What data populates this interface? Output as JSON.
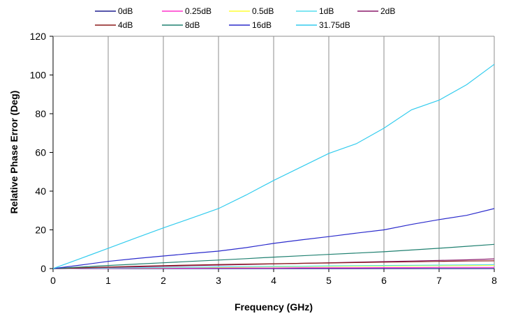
{
  "chart_data": {
    "type": "line",
    "title": "",
    "xlabel": "Frequency (GHz)",
    "ylabel": "Relative Phase Error (Deg)",
    "xlim": [
      0,
      8
    ],
    "ylim": [
      0,
      120
    ],
    "x_ticks": [
      "0",
      "1",
      "2",
      "3",
      "4",
      "5",
      "6",
      "7",
      "8"
    ],
    "y_ticks": [
      "0",
      "20",
      "40",
      "60",
      "80",
      "100",
      "120"
    ],
    "grid": "vertical",
    "legend_position": "top",
    "x": [
      0,
      0.5,
      1,
      1.5,
      2,
      2.5,
      3,
      3.5,
      4,
      4.5,
      5,
      5.5,
      6,
      6.5,
      7,
      7.5,
      8
    ],
    "series": [
      {
        "name": "0dB",
        "color": "#1f1f8f",
        "values": [
          0,
          0,
          0,
          0,
          0,
          0,
          0,
          0,
          0,
          0,
          0,
          0,
          0,
          0,
          0,
          0,
          0
        ]
      },
      {
        "name": "0.25dB",
        "color": "#ff33cc",
        "values": [
          0,
          0.1,
          0.1,
          0.2,
          0.2,
          0.2,
          0.3,
          0.3,
          0.3,
          0.4,
          0.4,
          0.4,
          0.5,
          0.5,
          0.6,
          0.6,
          0.6
        ]
      },
      {
        "name": "0.5dB",
        "color": "#ffff33",
        "values": [
          0,
          0.2,
          0.3,
          0.4,
          0.5,
          0.6,
          0.7,
          0.8,
          0.9,
          1.0,
          1.1,
          1.2,
          1.3,
          1.4,
          1.5,
          1.6,
          1.7
        ]
      },
      {
        "name": "1dB",
        "color": "#55ddee",
        "values": [
          0,
          0.2,
          0.3,
          0.5,
          0.6,
          0.7,
          0.9,
          1.0,
          1.1,
          1.2,
          1.4,
          1.5,
          1.6,
          1.7,
          1.8,
          1.9,
          2.0
        ]
      },
      {
        "name": "2dB",
        "color": "#8b1a6b",
        "values": [
          0,
          0.3,
          0.6,
          0.9,
          1.2,
          1.5,
          1.8,
          2.1,
          2.4,
          2.7,
          3.0,
          3.3,
          3.6,
          3.9,
          4.2,
          4.5,
          5.0
        ]
      },
      {
        "name": "4dB",
        "color": "#8b1a1a",
        "values": [
          0,
          0.4,
          0.8,
          1.2,
          1.5,
          1.8,
          2.1,
          2.3,
          2.5,
          2.7,
          2.9,
          3.1,
          3.3,
          3.5,
          3.7,
          3.9,
          4.0
        ]
      },
      {
        "name": "8dB",
        "color": "#1f8070",
        "values": [
          0,
          0.8,
          1.6,
          2.3,
          3.0,
          3.7,
          4.4,
          5.1,
          5.9,
          6.6,
          7.3,
          8.0,
          8.7,
          9.6,
          10.5,
          11.5,
          12.5
        ]
      },
      {
        "name": "16dB",
        "color": "#2b2bcc",
        "values": [
          0,
          1.8,
          3.7,
          5.2,
          6.5,
          7.8,
          9.0,
          10.8,
          13.0,
          14.8,
          16.5,
          18.3,
          20.0,
          22.8,
          25.3,
          27.5,
          31.0
        ]
      },
      {
        "name": "31.75dB",
        "color": "#33ccee",
        "values": [
          0,
          5.2,
          10.5,
          15.8,
          21.0,
          26.0,
          31.0,
          38.0,
          45.5,
          52.5,
          59.5,
          64.5,
          72.5,
          82.0,
          87.0,
          95.0,
          105.5
        ]
      }
    ]
  }
}
